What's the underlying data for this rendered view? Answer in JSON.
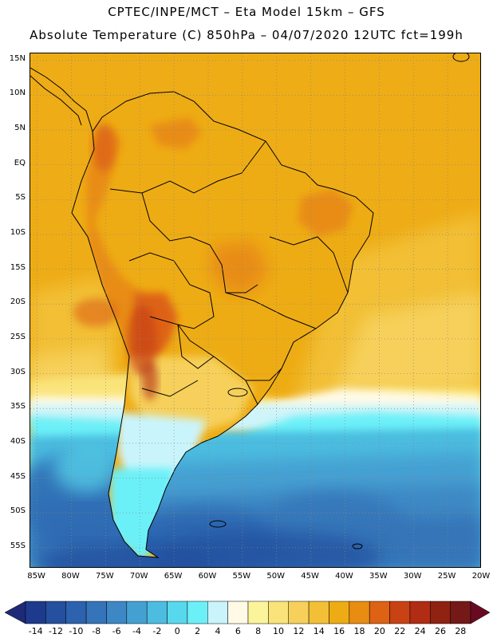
{
  "header": {
    "line1": "CPTEC/INPE/MCT –  Eta Model 15km – GFS",
    "line2": "Absolute Temperature (C) 850hPa – 04/07/2020 12UTC fct=199h"
  },
  "map": {
    "lat_labels": [
      "15N",
      "10N",
      "5N",
      "EQ",
      "5S",
      "10S",
      "15S",
      "20S",
      "25S",
      "30S",
      "35S",
      "40S",
      "45S",
      "50S",
      "55S"
    ],
    "lon_labels": [
      "85W",
      "80W",
      "75W",
      "70W",
      "65W",
      "60W",
      "55W",
      "50W",
      "45W",
      "40W",
      "35W",
      "30W",
      "25W",
      "20W"
    ],
    "lat_range": [
      16,
      -58
    ],
    "lon_range": [
      -86,
      -20
    ]
  },
  "legend": {
    "labels": [
      "-14",
      "-12",
      "-10",
      "-8",
      "-6",
      "-4",
      "-2",
      "0",
      "2",
      "4",
      "6",
      "8",
      "10",
      "12",
      "14",
      "16",
      "18",
      "20",
      "22",
      "24",
      "26",
      "28"
    ],
    "colors": [
      "#1e3a8c",
      "#24509e",
      "#2c62ae",
      "#3574b8",
      "#3d88c4",
      "#45a0d2",
      "#4cbde0",
      "#58d8ec",
      "#6cf0f8",
      "#caf4fc",
      "#fffae6",
      "#fcf49a",
      "#fae47a",
      "#f6d05a",
      "#f2bf36",
      "#eeac14",
      "#e88c12",
      "#de6214",
      "#c84214",
      "#b02c12",
      "#902212",
      "#741818"
    ],
    "min_arrow_color": "#1e2a78",
    "max_arrow_color": "#6a0a22"
  }
}
